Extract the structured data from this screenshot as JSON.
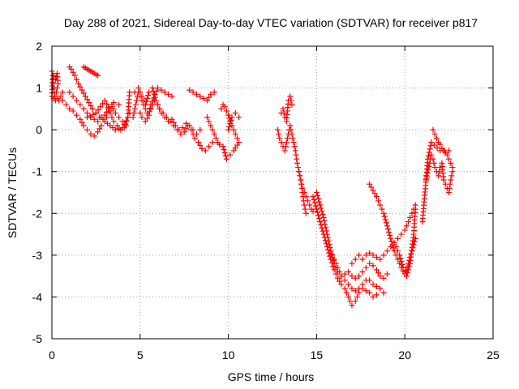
{
  "chart_data": {
    "type": "scatter",
    "title": "Day 288 of 2021, Sidereal Day-to-day VTEC variation (SDTVAR) for receiver p817",
    "xlabel": "GPS time / hours",
    "ylabel": "SDTVAR / TECUs",
    "xlim": [
      0,
      25
    ],
    "ylim": [
      -5,
      2
    ],
    "xticks": [
      0,
      5,
      10,
      15,
      20,
      25
    ],
    "yticks": [
      -5,
      -4,
      -3,
      -2,
      -1,
      0,
      1,
      2
    ],
    "grid": true,
    "marker": "+",
    "color": "#ff0000",
    "series": [
      {
        "name": "SDTVAR",
        "traces": [
          {
            "x": [
              0.0,
              0.1,
              0.2,
              0.3,
              0.35,
              0.25,
              0.15,
              0.1,
              0.05,
              0.0,
              0.1,
              0.2,
              0.3,
              0.4,
              0.5,
              0.6
            ],
            "y": [
              1.4,
              1.3,
              1.2,
              1.35,
              1.1,
              0.9,
              0.8,
              1.0,
              1.3,
              0.8,
              0.75,
              0.7,
              0.75,
              0.7,
              0.8,
              0.9
            ]
          },
          {
            "x": [
              0.6,
              0.8,
              1.0,
              1.2,
              1.4,
              1.6,
              1.8,
              2.0,
              2.2,
              2.4,
              2.6,
              2.8,
              3.0,
              3.3,
              3.6,
              4.0,
              4.2,
              4.4
            ],
            "y": [
              0.7,
              0.6,
              0.5,
              0.45,
              0.35,
              0.25,
              0.1,
              0.0,
              -0.1,
              -0.15,
              -0.05,
              0.1,
              0.2,
              0.1,
              0.0,
              0.05,
              0.2,
              0.4
            ]
          },
          {
            "x": [
              1.0,
              1.1,
              1.3,
              1.5,
              1.7,
              1.9,
              2.1,
              2.3,
              2.5,
              2.7,
              2.9,
              3.1,
              3.3,
              3.5,
              3.7,
              3.9,
              4.1,
              4.3,
              4.4
            ],
            "y": [
              1.5,
              1.45,
              1.3,
              1.1,
              0.95,
              0.8,
              0.65,
              0.5,
              0.4,
              0.3,
              0.25,
              0.3,
              0.4,
              0.2,
              0.1,
              0.0,
              0.05,
              0.3,
              0.9
            ]
          },
          {
            "x": [
              1.0,
              1.2,
              1.4,
              1.6,
              1.8,
              2.0,
              2.2,
              2.4,
              2.6,
              2.8,
              3.0,
              3.2,
              3.4,
              3.6,
              3.8,
              4.0,
              4.2
            ],
            "y": [
              0.9,
              0.8,
              0.7,
              0.6,
              0.5,
              0.4,
              0.3,
              0.25,
              0.2,
              0.3,
              0.35,
              0.5,
              0.6,
              0.4,
              0.3,
              0.2,
              0.1
            ]
          },
          {
            "x": [
              1.8,
              1.9,
              2.0,
              2.1,
              2.2,
              2.3,
              2.4,
              2.5,
              2.6
            ],
            "y": [
              1.5,
              1.48,
              1.45,
              1.43,
              1.4,
              1.38,
              1.35,
              1.32,
              1.3
            ]
          },
          {
            "x": [
              2.0,
              2.5,
              3.0,
              3.3,
              3.5,
              3.8
            ],
            "y": [
              0.3,
              0.4,
              0.7,
              0.45,
              0.65,
              0.6
            ]
          },
          {
            "x": [
              4.6,
              4.7,
              4.8,
              4.9,
              5.0,
              5.2,
              5.4,
              5.6,
              5.8,
              6.0,
              6.2,
              6.4,
              6.6,
              6.8,
              7.0,
              7.2,
              7.4,
              7.6,
              7.8,
              8.0,
              8.2,
              8.4
            ],
            "y": [
              0.3,
              0.5,
              0.7,
              0.9,
              0.8,
              0.6,
              0.4,
              0.5,
              0.7,
              0.6,
              0.4,
              0.3,
              0.2,
              0.25,
              0.1,
              0.0,
              0.05,
              0.15,
              0.1,
              0.0,
              -0.1,
              0.0
            ]
          },
          {
            "x": [
              4.7,
              4.9,
              5.1,
              5.3,
              5.5,
              5.7,
              5.9,
              6.1,
              6.3,
              6.5,
              6.7,
              6.9,
              7.1,
              7.3,
              7.5,
              7.7,
              7.9,
              8.1,
              8.3,
              8.5,
              8.7,
              8.9,
              9.1
            ],
            "y": [
              0.9,
              1.0,
              0.8,
              0.6,
              0.9,
              1.0,
              0.7,
              0.5,
              0.4,
              0.3,
              0.2,
              0.1,
              0.0,
              -0.1,
              -0.05,
              0.1,
              0.0,
              -0.2,
              -0.3,
              -0.45,
              -0.5,
              -0.4,
              -0.3
            ]
          },
          {
            "x": [
              5.0,
              5.1,
              5.3,
              5.5,
              5.6,
              6.0,
              6.4,
              6.8
            ],
            "y": [
              0.4,
              0.3,
              0.2,
              0.35,
              0.6,
              1.0,
              0.9,
              0.8
            ]
          },
          {
            "x": [
              7.8,
              8.0,
              8.2,
              8.4,
              8.6,
              8.8,
              9.0,
              9.2
            ],
            "y": [
              0.95,
              0.9,
              0.85,
              0.8,
              0.75,
              0.7,
              0.85,
              0.9
            ]
          },
          {
            "x": [
              8.8,
              8.9,
              9.0,
              9.1,
              9.2,
              9.3,
              9.4,
              9.5
            ],
            "y": [
              0.3,
              0.2,
              0.1,
              0.0,
              -0.1,
              -0.2,
              -0.3,
              -0.35
            ]
          },
          {
            "x": [
              9.6,
              9.7,
              9.8,
              9.9,
              10.0,
              10.1,
              10.2,
              10.3,
              10.4,
              10.5,
              10.6,
              10.3,
              10.1,
              9.9,
              9.7
            ],
            "y": [
              0.5,
              0.6,
              0.55,
              0.45,
              0.35,
              0.2,
              0.1,
              0.0,
              -0.1,
              -0.2,
              -0.3,
              -0.5,
              -0.6,
              -0.7,
              -0.4
            ]
          },
          {
            "x": [
              10.0,
              10.2,
              10.4,
              10.6
            ],
            "y": [
              0.0,
              0.3,
              0.4,
              0.3
            ]
          },
          {
            "x": [
              12.8,
              12.9,
              13.0,
              13.1,
              13.2,
              13.3,
              13.4,
              13.5,
              13.6,
              13.7,
              13.8,
              13.9,
              14.0,
              14.1,
              14.2,
              14.3,
              14.4,
              14.5,
              14.6,
              14.7,
              14.8
            ],
            "y": [
              0.0,
              -0.2,
              -0.3,
              -0.4,
              -0.5,
              -0.3,
              -0.1,
              0.1,
              -0.1,
              -0.3,
              -0.5,
              -0.8,
              -1.0,
              -1.2,
              -1.4,
              -1.5,
              -1.6,
              -1.7,
              -1.8,
              -1.9,
              -1.95
            ]
          },
          {
            "x": [
              13.0,
              13.1,
              13.2,
              13.3,
              13.4,
              13.5,
              13.6
            ],
            "y": [
              0.4,
              0.5,
              0.3,
              0.2,
              0.7,
              0.8,
              0.6
            ]
          },
          {
            "x": [
              14.0,
              14.1,
              14.2,
              14.3,
              14.4
            ],
            "y": [
              -1.0,
              -1.2,
              -1.5,
              -1.8,
              -2.0
            ]
          },
          {
            "x": [
              14.8,
              15.0,
              15.2,
              15.4,
              15.6,
              15.8,
              16.0,
              16.2,
              16.4,
              16.6,
              16.8,
              17.0,
              17.2,
              17.4,
              17.6,
              17.8,
              18.0,
              18.2,
              18.4
            ],
            "y": [
              -1.6,
              -1.9,
              -2.2,
              -2.5,
              -2.8,
              -3.1,
              -3.35,
              -3.55,
              -3.7,
              -3.8,
              -4.0,
              -4.2,
              -4.1,
              -3.9,
              -3.8,
              -3.85,
              -3.9,
              -4.0,
              -3.95
            ]
          },
          {
            "x": [
              15.0,
              15.2,
              15.4,
              15.6,
              15.8,
              16.0,
              16.2,
              16.4,
              16.6,
              16.8,
              17.0,
              17.2,
              17.4,
              17.6,
              17.8,
              18.0,
              18.2,
              18.4,
              18.6,
              18.8,
              19.0
            ],
            "y": [
              -1.5,
              -1.8,
              -2.1,
              -2.5,
              -2.9,
              -3.2,
              -3.4,
              -3.5,
              -3.45,
              -3.4,
              -3.5,
              -3.55,
              -3.5,
              -3.4,
              -3.3,
              -3.2,
              -3.25,
              -3.35,
              -3.5,
              -3.55,
              -3.45
            ]
          },
          {
            "x": [
              15.8,
              16.0,
              16.2,
              16.4,
              16.6,
              16.8,
              17.0,
              17.2,
              17.4,
              17.6,
              17.8,
              18.0,
              18.2,
              18.4,
              18.6,
              18.8
            ],
            "y": [
              -2.9,
              -3.1,
              -3.3,
              -3.5,
              -3.6,
              -3.7,
              -3.8,
              -3.85,
              -3.8,
              -3.7,
              -3.6,
              -3.6,
              -3.7,
              -3.75,
              -3.8,
              -3.9
            ]
          },
          {
            "x": [
              17.0,
              17.2,
              17.4,
              17.6,
              17.8,
              18.0,
              18.2,
              18.4,
              18.6,
              18.8,
              19.0,
              19.2,
              19.4,
              19.6,
              19.8,
              20.0,
              20.2,
              20.4,
              20.6
            ],
            "y": [
              -3.2,
              -3.1,
              -3.0,
              -3.1,
              -3.0,
              -2.95,
              -3.0,
              -3.05,
              -3.1,
              -3.0,
              -2.9,
              -2.8,
              -2.7,
              -2.6,
              -2.5,
              -2.4,
              -2.2,
              -2.0,
              -1.8
            ]
          },
          {
            "x": [
              18.0,
              18.2,
              18.4,
              18.6,
              18.8,
              19.0,
              19.2,
              19.4,
              19.6,
              19.8,
              20.0,
              20.2,
              20.4,
              20.6
            ],
            "y": [
              -1.3,
              -1.45,
              -1.6,
              -1.8,
              -2.0,
              -2.3,
              -2.6,
              -2.9,
              -3.1,
              -3.3,
              -3.45,
              -3.2,
              -2.9,
              -2.6
            ]
          },
          {
            "x": [
              19.5,
              19.7,
              19.9,
              20.1,
              20.3,
              20.5,
              20.6
            ],
            "y": [
              -2.8,
              -3.0,
              -3.3,
              -3.5,
              -3.2,
              -2.5,
              -1.9
            ]
          },
          {
            "x": [
              21.2,
              21.4,
              21.5,
              21.6,
              21.7,
              21.8,
              21.9,
              22.0,
              22.1,
              22.2,
              22.3,
              22.4,
              22.5,
              22.6,
              22.7
            ],
            "y": [
              -1.2,
              -0.8,
              -0.6,
              -0.7,
              -0.9,
              -1.0,
              -1.1,
              -0.9,
              -0.8,
              -1.2,
              -1.3,
              -1.4,
              -1.5,
              -1.2,
              -1.0
            ]
          },
          {
            "x": [
              21.6,
              21.7,
              21.8,
              21.9,
              22.0,
              22.1,
              22.2,
              22.3,
              22.4,
              22.5,
              22.6,
              22.7
            ],
            "y": [
              0.0,
              -0.1,
              -0.2,
              -0.3,
              -0.35,
              -0.45,
              -0.5,
              -0.55,
              -0.6,
              -0.7,
              -0.8,
              -0.9
            ]
          },
          {
            "x": [
              21.0,
              21.3,
              21.5,
              22.0,
              22.5
            ],
            "y": [
              -2.2,
              -0.7,
              -0.3,
              -0.5,
              -0.5
            ]
          }
        ]
      }
    ]
  }
}
